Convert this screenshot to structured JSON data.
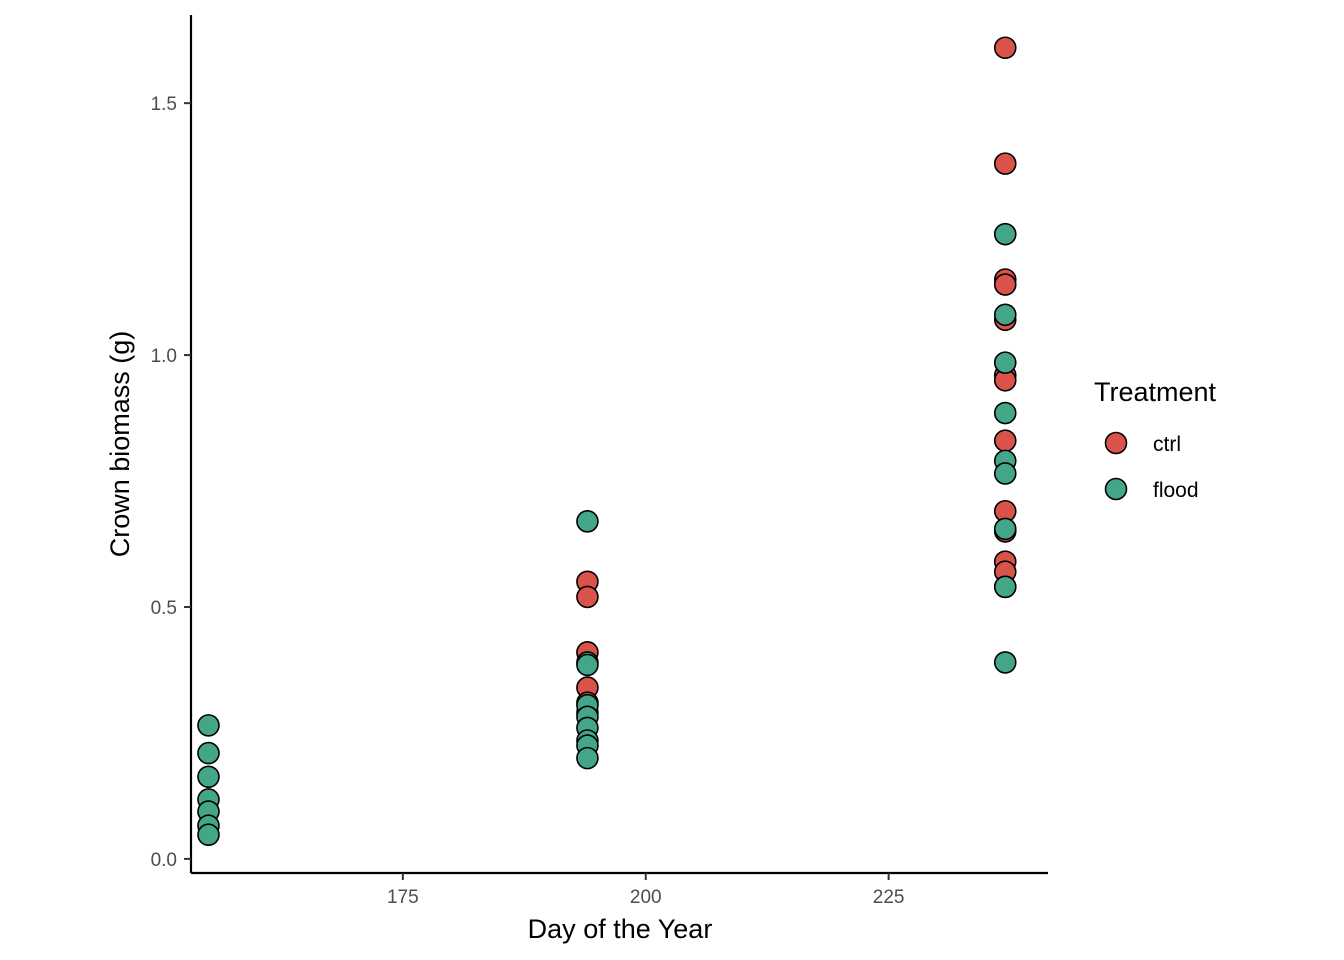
{
  "chart_data": {
    "type": "scatter",
    "xlabel": "Day of the Year",
    "ylabel": "Crown biomass (g)",
    "xlim": [
      153.2,
      241.4
    ],
    "ylim": [
      -0.028,
      1.675
    ],
    "x_ticks": [
      175,
      200,
      225
    ],
    "x_tick_labels": [
      "175",
      "200",
      "225"
    ],
    "y_ticks": [
      0.0,
      0.5,
      1.0,
      1.5
    ],
    "y_tick_labels": [
      "0.0",
      "0.5",
      "1.0",
      "1.5"
    ],
    "grid": false,
    "legend_position": "right",
    "legend": {
      "title": "Treatment",
      "entries": [
        {
          "label": "ctrl",
          "color": "#d9534a"
        },
        {
          "label": "flood",
          "color": "#44a688"
        }
      ]
    },
    "series": [
      {
        "name": "ctrl",
        "color": "#d9534a",
        "points": [
          {
            "x": 194,
            "y": 0.55
          },
          {
            "x": 194,
            "y": 0.52
          },
          {
            "x": 194,
            "y": 0.41
          },
          {
            "x": 194,
            "y": 0.34
          },
          {
            "x": 194,
            "y": 0.31
          },
          {
            "x": 194,
            "y": 0.29
          },
          {
            "x": 237,
            "y": 1.61
          },
          {
            "x": 237,
            "y": 1.38
          },
          {
            "x": 237,
            "y": 1.15
          },
          {
            "x": 237,
            "y": 1.14
          },
          {
            "x": 237,
            "y": 1.07
          },
          {
            "x": 237,
            "y": 0.96
          },
          {
            "x": 237,
            "y": 0.95
          },
          {
            "x": 237,
            "y": 0.83
          },
          {
            "x": 237,
            "y": 0.69
          },
          {
            "x": 237,
            "y": 0.65
          },
          {
            "x": 237,
            "y": 0.59
          },
          {
            "x": 237,
            "y": 0.57
          },
          {
            "x": 237,
            "y": 0.54
          }
        ]
      },
      {
        "name": "flood",
        "color": "#44a688",
        "points": [
          {
            "x": 155,
            "y": 0.265
          },
          {
            "x": 155,
            "y": 0.21
          },
          {
            "x": 155,
            "y": 0.163
          },
          {
            "x": 155,
            "y": 0.118
          },
          {
            "x": 155,
            "y": 0.094
          },
          {
            "x": 155,
            "y": 0.066
          },
          {
            "x": 155,
            "y": 0.048
          },
          {
            "x": 194,
            "y": 0.67
          },
          {
            "x": 194,
            "y": 0.39
          },
          {
            "x": 194,
            "y": 0.385
          },
          {
            "x": 194,
            "y": 0.305
          },
          {
            "x": 194,
            "y": 0.282
          },
          {
            "x": 194,
            "y": 0.26
          },
          {
            "x": 194,
            "y": 0.235
          },
          {
            "x": 194,
            "y": 0.225
          },
          {
            "x": 194,
            "y": 0.2
          },
          {
            "x": 237,
            "y": 1.24
          },
          {
            "x": 237,
            "y": 1.08
          },
          {
            "x": 237,
            "y": 0.985
          },
          {
            "x": 237,
            "y": 0.885
          },
          {
            "x": 237,
            "y": 0.79
          },
          {
            "x": 237,
            "y": 0.765
          },
          {
            "x": 237,
            "y": 0.655
          },
          {
            "x": 237,
            "y": 0.54
          },
          {
            "x": 237,
            "y": 0.39
          }
        ]
      }
    ]
  }
}
